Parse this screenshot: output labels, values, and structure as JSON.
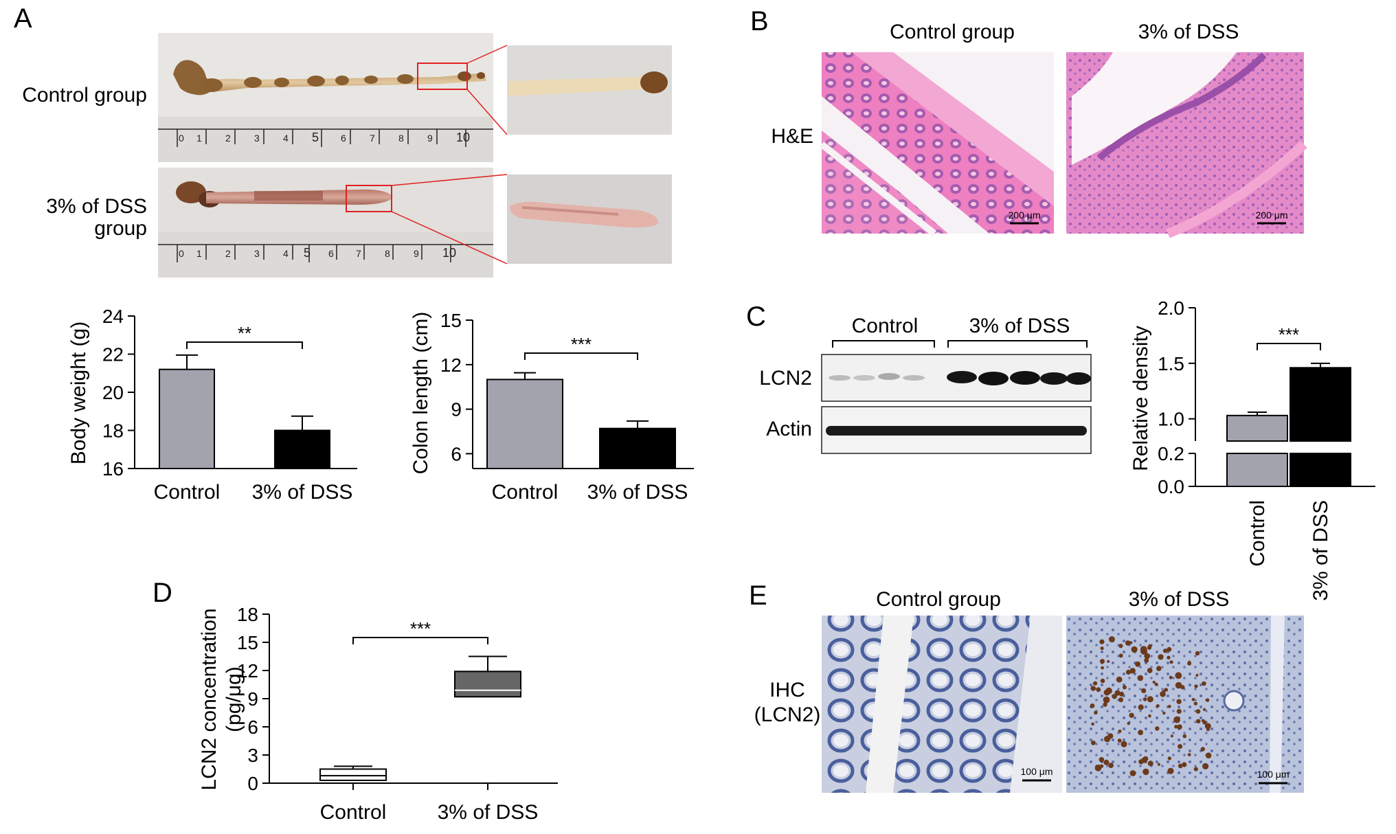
{
  "panels": {
    "A": {
      "letter": "A",
      "row_labels": [
        "Control group",
        "3% of DSS",
        "group"
      ],
      "ruler_ticks": [
        "0",
        "1",
        "2",
        "3",
        "4",
        "5",
        "6",
        "7",
        "8",
        "9",
        "10"
      ]
    },
    "B": {
      "letter": "B",
      "col_labels": [
        "Control group",
        "3% of DSS"
      ],
      "row_label": "H&E",
      "scalebar": "200 μm"
    },
    "C": {
      "letter": "C",
      "group_labels": [
        "Control",
        "3% of DSS"
      ],
      "bands": [
        "LCN2",
        "Actin"
      ]
    },
    "D": {
      "letter": "D"
    },
    "E": {
      "letter": "E",
      "col_labels": [
        "Control group",
        "3% of DSS"
      ],
      "row_label_1": "IHC",
      "row_label_2": "(LCN2)",
      "scalebar": "100 μm"
    }
  },
  "colors": {
    "control": "#a3a3ae",
    "dss": "#000000",
    "box_dss": "#666666",
    "he_pink": "#e8559f",
    "ihc_blue": "#5a6fa8"
  },
  "chart_data": [
    {
      "id": "body-weight",
      "type": "bar",
      "categories": [
        "Control",
        "3% of DSS"
      ],
      "values": [
        21.2,
        18.0
      ],
      "errors": [
        0.75,
        0.75
      ],
      "ylabel": "Body weight (g)",
      "ylim": [
        16,
        24
      ],
      "yticks": [
        "16",
        "18",
        "20",
        "22",
        "24"
      ],
      "significance": "**"
    },
    {
      "id": "colon-length",
      "type": "bar",
      "categories": [
        "Control",
        "3% of DSS"
      ],
      "values": [
        11.0,
        7.7
      ],
      "errors": [
        0.45,
        0.5
      ],
      "ylabel": "Colon length (cm)",
      "ylim": [
        5,
        15
      ],
      "yticks": [
        "6",
        "9",
        "12",
        "15"
      ],
      "significance": "***"
    },
    {
      "id": "relative-density",
      "type": "bar",
      "categories": [
        "Control",
        "3% of DSS"
      ],
      "values": [
        1.03,
        1.46
      ],
      "errors": [
        0.03,
        0.04
      ],
      "ylabel": "Relative density",
      "ylim": [
        0,
        2.0
      ],
      "axis_break": [
        0.2,
        0.8
      ],
      "yticks": [
        "0.0",
        "0.2",
        "1.0",
        "1.5",
        "2.0"
      ],
      "significance": "***"
    },
    {
      "id": "lcn2-concentration",
      "type": "box",
      "categories": [
        "Control",
        "3% of DSS"
      ],
      "boxes": [
        {
          "min": 0.3,
          "q1": 0.3,
          "median": 0.8,
          "q3": 1.5,
          "max": 1.8
        },
        {
          "min": 9.2,
          "q1": 9.2,
          "median": 9.9,
          "q3": 11.9,
          "max": 13.5
        }
      ],
      "ylabel": "LCN2 concentration",
      "ylabel_unit": "(pg/μg)",
      "ylim": [
        0,
        18
      ],
      "yticks": [
        "0",
        "3",
        "6",
        "9",
        "12",
        "15",
        "18"
      ],
      "significance": "***"
    }
  ]
}
